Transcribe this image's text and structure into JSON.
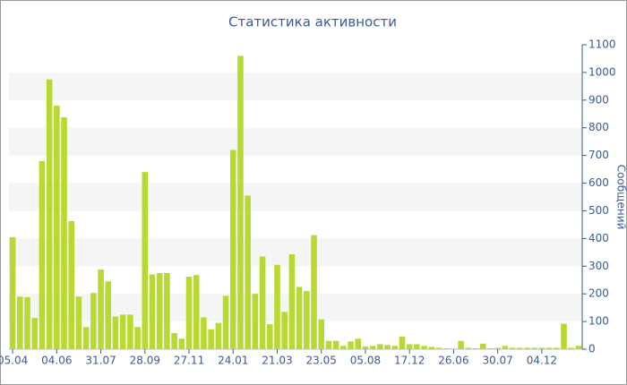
{
  "chart_data": {
    "type": "bar",
    "title": "Статистика активности",
    "y_label": "Сообщений",
    "categories": [
      "05.04",
      null,
      null,
      null,
      null,
      null,
      "04.06",
      null,
      null,
      null,
      null,
      null,
      "31.07",
      null,
      null,
      null,
      null,
      null,
      "28.09",
      null,
      null,
      null,
      null,
      null,
      "27.11",
      null,
      null,
      null,
      null,
      null,
      "24.01",
      null,
      null,
      null,
      null,
      null,
      "21.03",
      null,
      null,
      null,
      null,
      null,
      "23.05",
      null,
      null,
      null,
      null,
      null,
      "05.08",
      null,
      null,
      null,
      null,
      null,
      "17.12",
      null,
      null,
      null,
      null,
      null,
      "26.06",
      null,
      null,
      null,
      null,
      null,
      "30.07",
      null,
      null,
      null,
      null,
      null,
      "04.12",
      null,
      null,
      null,
      null,
      null
    ],
    "values": [
      405,
      190,
      188,
      113,
      680,
      975,
      880,
      838,
      463,
      190,
      80,
      203,
      288,
      245,
      118,
      125,
      125,
      80,
      640,
      270,
      275,
      275,
      58,
      38,
      262,
      268,
      115,
      72,
      95,
      193,
      720,
      1060,
      555,
      200,
      335,
      90,
      305,
      135,
      343,
      225,
      210,
      412,
      108,
      30,
      30,
      12,
      28,
      38,
      10,
      12,
      18,
      15,
      12,
      45,
      18,
      18,
      12,
      8,
      5,
      3,
      2,
      30,
      5,
      3,
      20,
      3,
      5,
      12,
      5,
      5,
      5,
      5,
      5,
      5,
      5,
      92,
      5,
      12
    ],
    "color": "#b8d932",
    "ylim": [
      0,
      1100
    ],
    "yticks": [
      0,
      100,
      200,
      300,
      400,
      500,
      600,
      700,
      800,
      900,
      1000,
      1100
    ],
    "grid": true
  }
}
